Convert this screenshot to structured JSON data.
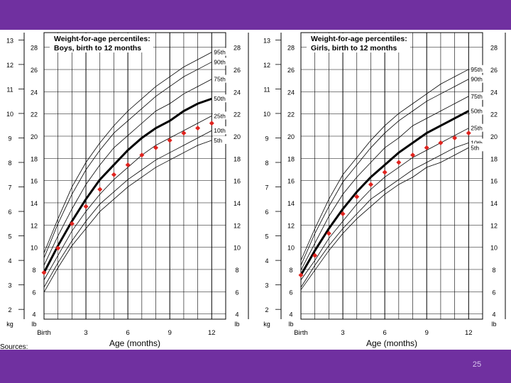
{
  "colors": {
    "frame": "#7030a0",
    "marker": "#e0231e",
    "grid": "#000000"
  },
  "slide": {
    "number": "25",
    "sources_label": "Sources:"
  },
  "chart_data": [
    {
      "type": "line",
      "title": "Weight-for-age percentiles:",
      "subtitle": "Boys, birth to 12 months",
      "xlabel": "Age (months)",
      "x_ticks": [
        {
          "x": 0,
          "label": "Birth"
        },
        {
          "x": 3,
          "label": "3"
        },
        {
          "x": 6,
          "label": "6"
        },
        {
          "x": 9,
          "label": "9"
        },
        {
          "x": 12,
          "label": "12"
        }
      ],
      "xlim": [
        0,
        13
      ],
      "kg_unit": "kg",
      "lb_unit": "lb",
      "kg_ticks": [
        2,
        3,
        4,
        5,
        6,
        7,
        8,
        9,
        10,
        11,
        12,
        13
      ],
      "lb_ticks": [
        4,
        6,
        8,
        10,
        12,
        14,
        16,
        18,
        20,
        22,
        24,
        26,
        28
      ],
      "ylim_kg": [
        1.6,
        13.3
      ],
      "series": [
        {
          "name": "95th",
          "x": [
            0,
            1,
            2,
            3,
            4,
            5,
            6,
            7,
            8,
            9,
            10,
            11,
            12
          ],
          "y": [
            4.3,
            5.7,
            7.0,
            8.0,
            8.8,
            9.5,
            10.1,
            10.6,
            11.1,
            11.5,
            11.9,
            12.2,
            12.5
          ],
          "bold": false
        },
        {
          "name": "90th",
          "x": [
            0,
            1,
            2,
            3,
            4,
            5,
            6,
            7,
            8,
            9,
            10,
            11,
            12
          ],
          "y": [
            4.1,
            5.5,
            6.7,
            7.7,
            8.5,
            9.2,
            9.7,
            10.2,
            10.7,
            11.1,
            11.5,
            11.8,
            12.1
          ],
          "bold": false
        },
        {
          "name": "75th",
          "x": [
            0,
            1,
            2,
            3,
            4,
            5,
            6,
            7,
            8,
            9,
            10,
            11,
            12
          ],
          "y": [
            3.8,
            5.0,
            6.1,
            7.1,
            7.9,
            8.6,
            9.1,
            9.6,
            10.1,
            10.4,
            10.8,
            11.1,
            11.4
          ],
          "bold": false
        },
        {
          "name": "50th",
          "x": [
            0,
            1,
            2,
            3,
            4,
            5,
            6,
            7,
            8,
            9,
            10,
            11,
            12
          ],
          "y": [
            3.5,
            4.6,
            5.6,
            6.5,
            7.3,
            7.9,
            8.5,
            9.0,
            9.4,
            9.7,
            10.1,
            10.4,
            10.6
          ],
          "bold": true
        },
        {
          "name": "25th",
          "x": [
            0,
            1,
            2,
            3,
            4,
            5,
            6,
            7,
            8,
            9,
            10,
            11,
            12
          ],
          "y": [
            3.2,
            4.2,
            5.2,
            6.0,
            6.7,
            7.3,
            7.8,
            8.3,
            8.7,
            9.0,
            9.3,
            9.6,
            9.9
          ],
          "bold": false
        },
        {
          "name": "10th",
          "x": [
            0,
            1,
            2,
            3,
            4,
            5,
            6,
            7,
            8,
            9,
            10,
            11,
            12
          ],
          "y": [
            2.9,
            3.9,
            4.8,
            5.6,
            6.3,
            6.8,
            7.3,
            7.7,
            8.1,
            8.4,
            8.7,
            9.0,
            9.3
          ],
          "bold": false
        },
        {
          "name": "5th",
          "x": [
            0,
            1,
            2,
            3,
            4,
            5,
            6,
            7,
            8,
            9,
            10,
            11,
            12
          ],
          "y": [
            2.7,
            3.7,
            4.6,
            5.3,
            6.0,
            6.5,
            7.0,
            7.4,
            7.8,
            8.1,
            8.4,
            8.7,
            8.9
          ],
          "bold": false
        }
      ],
      "markers": {
        "x": [
          0,
          1,
          2,
          3,
          4,
          5,
          6,
          7,
          8,
          9,
          10,
          11,
          12
        ],
        "y": [
          3.5,
          4.5,
          5.5,
          6.2,
          6.9,
          7.5,
          7.9,
          8.3,
          8.6,
          8.9,
          9.2,
          9.4,
          9.6
        ]
      }
    },
    {
      "type": "line",
      "title": "Weight-for-age percentiles:",
      "subtitle": "Girls, birth to 12 months",
      "xlabel": "Age (months)",
      "x_ticks": [
        {
          "x": 0,
          "label": "Birth"
        },
        {
          "x": 3,
          "label": "3"
        },
        {
          "x": 6,
          "label": "6"
        },
        {
          "x": 9,
          "label": "9"
        },
        {
          "x": 12,
          "label": "12"
        }
      ],
      "xlim": [
        0,
        13
      ],
      "kg_unit": "kg",
      "lb_unit": "lb",
      "kg_ticks": [
        2,
        3,
        4,
        5,
        6,
        7,
        8,
        9,
        10,
        11,
        12,
        13
      ],
      "lb_ticks": [
        4,
        6,
        8,
        10,
        12,
        14,
        16,
        18,
        20,
        22,
        24,
        26,
        28
      ],
      "ylim_kg": [
        1.6,
        13.3
      ],
      "series": [
        {
          "name": "95th",
          "x": [
            0,
            1,
            2,
            3,
            4,
            5,
            6,
            7,
            8,
            9,
            10,
            11,
            12
          ],
          "y": [
            4.0,
            5.3,
            6.5,
            7.5,
            8.2,
            8.9,
            9.5,
            10.0,
            10.4,
            10.8,
            11.2,
            11.5,
            11.8
          ],
          "bold": false
        },
        {
          "name": "90th",
          "x": [
            0,
            1,
            2,
            3,
            4,
            5,
            6,
            7,
            8,
            9,
            10,
            11,
            12
          ],
          "y": [
            3.8,
            5.1,
            6.2,
            7.2,
            7.9,
            8.6,
            9.2,
            9.7,
            10.1,
            10.5,
            10.8,
            11.1,
            11.4
          ],
          "bold": false
        },
        {
          "name": "75th",
          "x": [
            0,
            1,
            2,
            3,
            4,
            5,
            6,
            7,
            8,
            9,
            10,
            11,
            12
          ],
          "y": [
            3.6,
            4.7,
            5.8,
            6.7,
            7.4,
            8.0,
            8.6,
            9.0,
            9.5,
            9.8,
            10.1,
            10.4,
            10.7
          ],
          "bold": false
        },
        {
          "name": "50th",
          "x": [
            0,
            1,
            2,
            3,
            4,
            5,
            6,
            7,
            8,
            9,
            10,
            11,
            12
          ],
          "y": [
            3.4,
            4.4,
            5.3,
            6.1,
            6.8,
            7.4,
            7.9,
            8.4,
            8.8,
            9.2,
            9.5,
            9.8,
            10.1
          ],
          "bold": true
        },
        {
          "name": "25th",
          "x": [
            0,
            1,
            2,
            3,
            4,
            5,
            6,
            7,
            8,
            9,
            10,
            11,
            12
          ],
          "y": [
            3.2,
            4.0,
            4.9,
            5.6,
            6.3,
            6.9,
            7.4,
            7.8,
            8.2,
            8.5,
            8.8,
            9.1,
            9.4
          ],
          "bold": false
        },
        {
          "name": "10th",
          "x": [
            0,
            1,
            2,
            3,
            4,
            5,
            6,
            7,
            8,
            9,
            10,
            11,
            12
          ],
          "y": [
            2.9,
            3.8,
            4.6,
            5.3,
            5.9,
            6.5,
            6.9,
            7.3,
            7.7,
            8.0,
            8.3,
            8.6,
            8.8
          ],
          "bold": false
        },
        {
          "name": "5th",
          "x": [
            0,
            1,
            2,
            3,
            4,
            5,
            6,
            7,
            8,
            9,
            10,
            11,
            12
          ],
          "y": [
            2.8,
            3.6,
            4.4,
            5.1,
            5.7,
            6.2,
            6.7,
            7.1,
            7.4,
            7.8,
            8.0,
            8.3,
            8.6
          ],
          "bold": false
        }
      ],
      "markers": {
        "x": [
          0,
          1,
          2,
          3,
          4,
          5,
          6,
          7,
          8,
          9,
          10,
          11,
          12
        ],
        "y": [
          3.4,
          4.2,
          5.1,
          5.9,
          6.6,
          7.1,
          7.6,
          8.0,
          8.3,
          8.6,
          8.8,
          9.0,
          9.2
        ]
      }
    }
  ]
}
